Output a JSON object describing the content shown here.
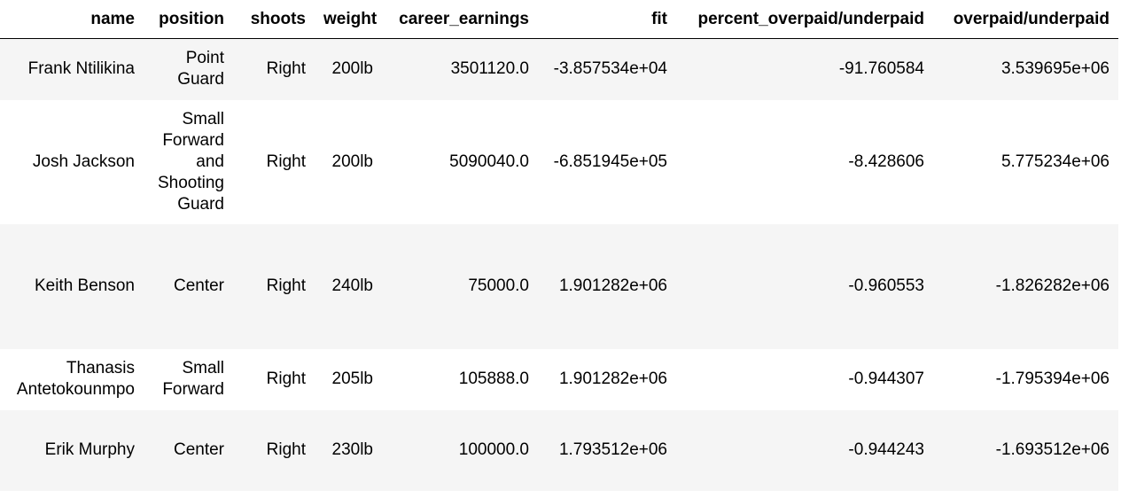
{
  "table": {
    "columns": [
      "name",
      "position",
      "shoots",
      "weight",
      "career_earnings",
      "fit",
      "percent_overpaid/underpaid",
      "overpaid/underpaid"
    ],
    "rows": [
      [
        "Frank Ntilikina",
        "Point Guard",
        "Right",
        "200lb",
        "3501120.0",
        "-3.857534e+04",
        "-91.760584",
        "3.539695e+06"
      ],
      [
        "Josh Jackson",
        "Small Forward and Shooting Guard",
        "Right",
        "200lb",
        "5090040.0",
        "-6.851945e+05",
        "-8.428606",
        "5.775234e+06"
      ],
      [
        "Keith Benson",
        "Center",
        "Right",
        "240lb",
        "75000.0",
        "1.901282e+06",
        "-0.960553",
        "-1.826282e+06"
      ],
      [
        "Thanasis Antetokounmpo",
        "Small Forward",
        "Right",
        "205lb",
        "105888.0",
        "1.901282e+06",
        "-0.944307",
        "-1.795394e+06"
      ],
      [
        "Erik Murphy",
        "Center",
        "Right",
        "230lb",
        "100000.0",
        "1.793512e+06",
        "-0.944243",
        "-1.693512e+06"
      ]
    ]
  }
}
